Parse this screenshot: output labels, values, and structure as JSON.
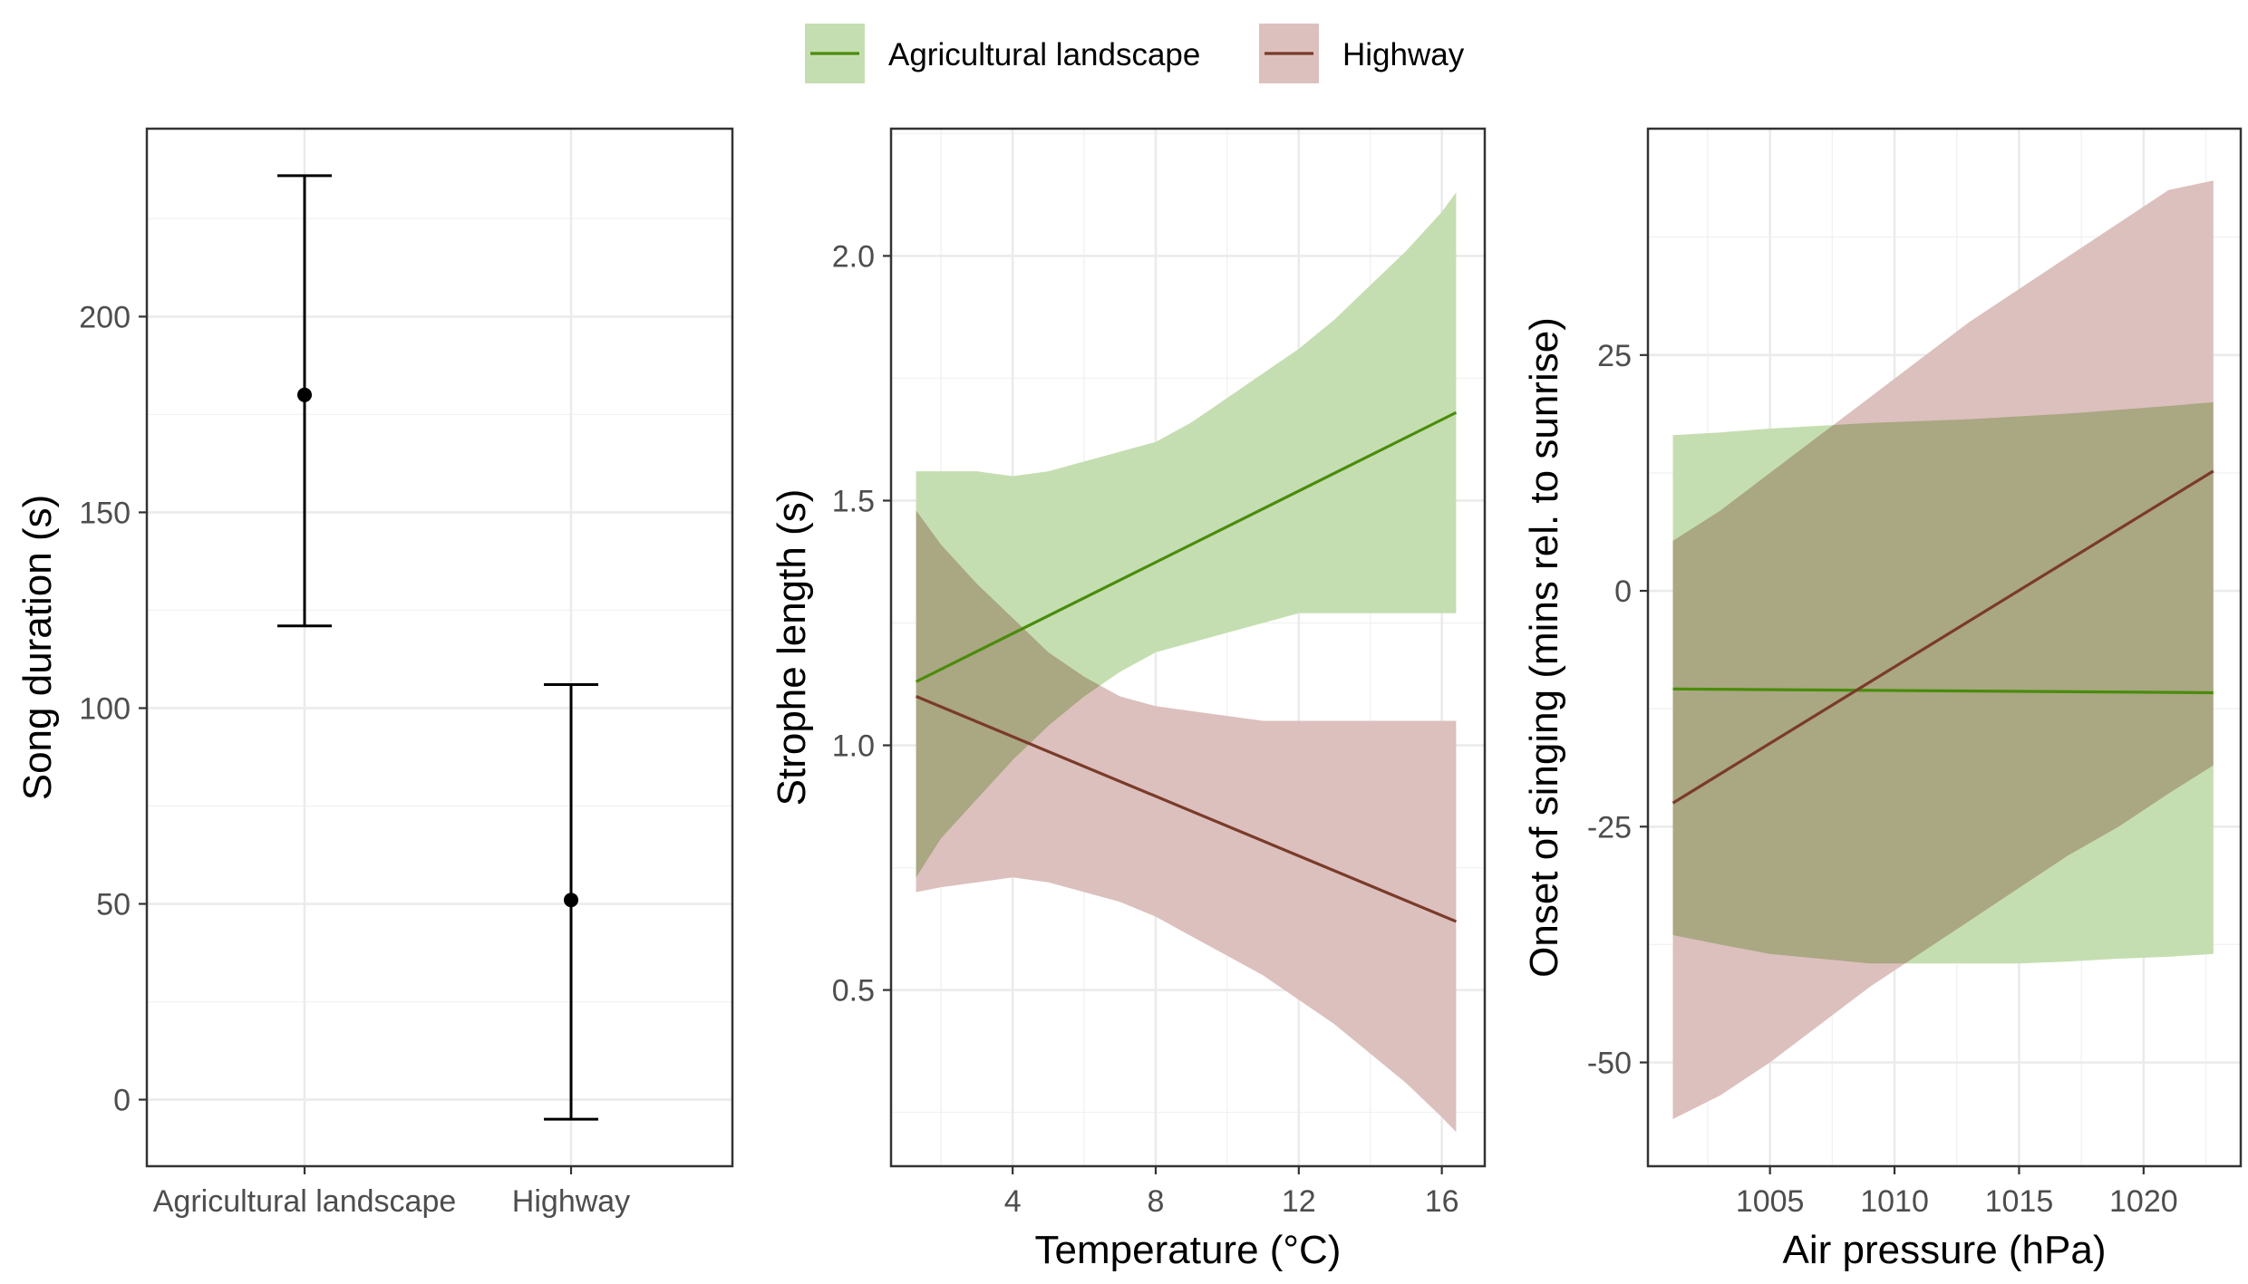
{
  "legend": {
    "entries": [
      {
        "label": "Agricultural landscape",
        "line_color": "#4a8c0b",
        "fill_color": "#c5deb1"
      },
      {
        "label": "Highway",
        "line_color": "#7a3b2a",
        "fill_color": "#dcc0bd"
      }
    ]
  },
  "chart_data": [
    {
      "type": "errorbar",
      "title": "",
      "xlabel": "",
      "ylabel": "Song duration (s)",
      "categories": [
        "Agricultural landscape",
        "Highway"
      ],
      "series": [
        {
          "name": "",
          "values": [
            180,
            51
          ],
          "lower": [
            121,
            -5
          ],
          "upper": [
            236,
            106
          ]
        }
      ],
      "ylim": [
        -17,
        248
      ],
      "yticks": [
        0,
        50,
        100,
        150,
        200
      ],
      "grid": true,
      "legend": "none",
      "color": "#000000"
    },
    {
      "type": "line",
      "title": "",
      "xlabel": "Temperature (°C)",
      "ylabel": "Strophe length (s)",
      "xlim": [
        0.6,
        17.2
      ],
      "ylim": [
        0.14,
        2.26
      ],
      "xticks": [
        4,
        8,
        12,
        16
      ],
      "yticks": [
        0.5,
        1.0,
        1.5,
        2.0
      ],
      "grid": true,
      "legend": "top",
      "series": [
        {
          "name": "Agricultural landscape",
          "color": "#4a8c0b",
          "fill": "#c5deb1",
          "x": [
            1.3,
            16.4
          ],
          "y": [
            1.13,
            1.68
          ],
          "band_x": [
            1.3,
            2,
            3,
            4,
            5,
            6,
            7,
            8,
            9,
            10,
            11,
            12,
            13,
            14,
            15,
            16,
            16.4
          ],
          "band_lower": [
            0.73,
            0.81,
            0.89,
            0.97,
            1.04,
            1.1,
            1.15,
            1.19,
            1.21,
            1.23,
            1.25,
            1.27,
            1.27,
            1.27,
            1.27,
            1.27,
            1.27
          ],
          "band_upper": [
            1.56,
            1.56,
            1.56,
            1.55,
            1.56,
            1.58,
            1.6,
            1.62,
            1.66,
            1.71,
            1.76,
            1.81,
            1.87,
            1.94,
            2.01,
            2.09,
            2.13
          ]
        },
        {
          "name": "Highway",
          "color": "#7a3b2a",
          "fill": "#dcc0bd",
          "x": [
            1.3,
            16.4
          ],
          "y": [
            1.1,
            0.64
          ],
          "band_x": [
            1.3,
            2,
            3,
            4,
            5,
            6,
            7,
            8,
            9,
            10,
            11,
            12,
            13,
            14,
            15,
            16,
            16.4
          ],
          "band_lower": [
            0.7,
            0.71,
            0.72,
            0.73,
            0.72,
            0.7,
            0.68,
            0.65,
            0.61,
            0.57,
            0.53,
            0.48,
            0.43,
            0.37,
            0.31,
            0.24,
            0.21
          ],
          "band_upper": [
            1.48,
            1.41,
            1.33,
            1.26,
            1.19,
            1.14,
            1.1,
            1.08,
            1.07,
            1.06,
            1.05,
            1.05,
            1.05,
            1.05,
            1.05,
            1.05,
            1.05
          ]
        }
      ]
    },
    {
      "type": "line",
      "title": "",
      "xlabel": "Air pressure (hPa)",
      "ylabel": "Onset of singing (mins rel. to sunrise)",
      "xlim": [
        1000.1,
        1023.9
      ],
      "ylim": [
        -61,
        49
      ],
      "xticks": [
        1005,
        1010,
        1015,
        1020
      ],
      "yticks": [
        -50,
        -25,
        0,
        25
      ],
      "grid": true,
      "legend": "top",
      "series": [
        {
          "name": "Agricultural landscape",
          "color": "#4a8c0b",
          "fill": "#c5deb1",
          "x": [
            1001.1,
            1022.8
          ],
          "y": [
            -10.4,
            -10.8
          ],
          "band_x": [
            1001.1,
            1003,
            1005,
            1007,
            1009,
            1011,
            1013,
            1015,
            1017,
            1019,
            1021,
            1022.8
          ],
          "band_lower": [
            -36.5,
            -37.5,
            -38.5,
            -39.0,
            -39.5,
            -39.5,
            -39.5,
            -39.5,
            -39.3,
            -39.0,
            -38.8,
            -38.5
          ],
          "band_upper": [
            16.5,
            16.8,
            17.2,
            17.5,
            17.8,
            18.0,
            18.2,
            18.5,
            18.8,
            19.2,
            19.6,
            20.0
          ]
        },
        {
          "name": "Highway",
          "color": "#7a3b2a",
          "fill": "#dcc0bd",
          "x": [
            1001.1,
            1022.8
          ],
          "y": [
            -22.5,
            12.7
          ],
          "band_x": [
            1001.1,
            1003,
            1005,
            1007,
            1009,
            1011,
            1013,
            1015,
            1017,
            1019,
            1021,
            1022.8
          ],
          "band_lower": [
            -56.0,
            -53.5,
            -50.0,
            -46.0,
            -42.0,
            -38.5,
            -35.0,
            -31.5,
            -28.0,
            -25.0,
            -21.5,
            -18.5
          ],
          "band_upper": [
            5.3,
            8.5,
            12.5,
            16.5,
            20.5,
            24.5,
            28.5,
            32.0,
            35.5,
            39.0,
            42.5,
            43.5
          ]
        }
      ]
    }
  ]
}
